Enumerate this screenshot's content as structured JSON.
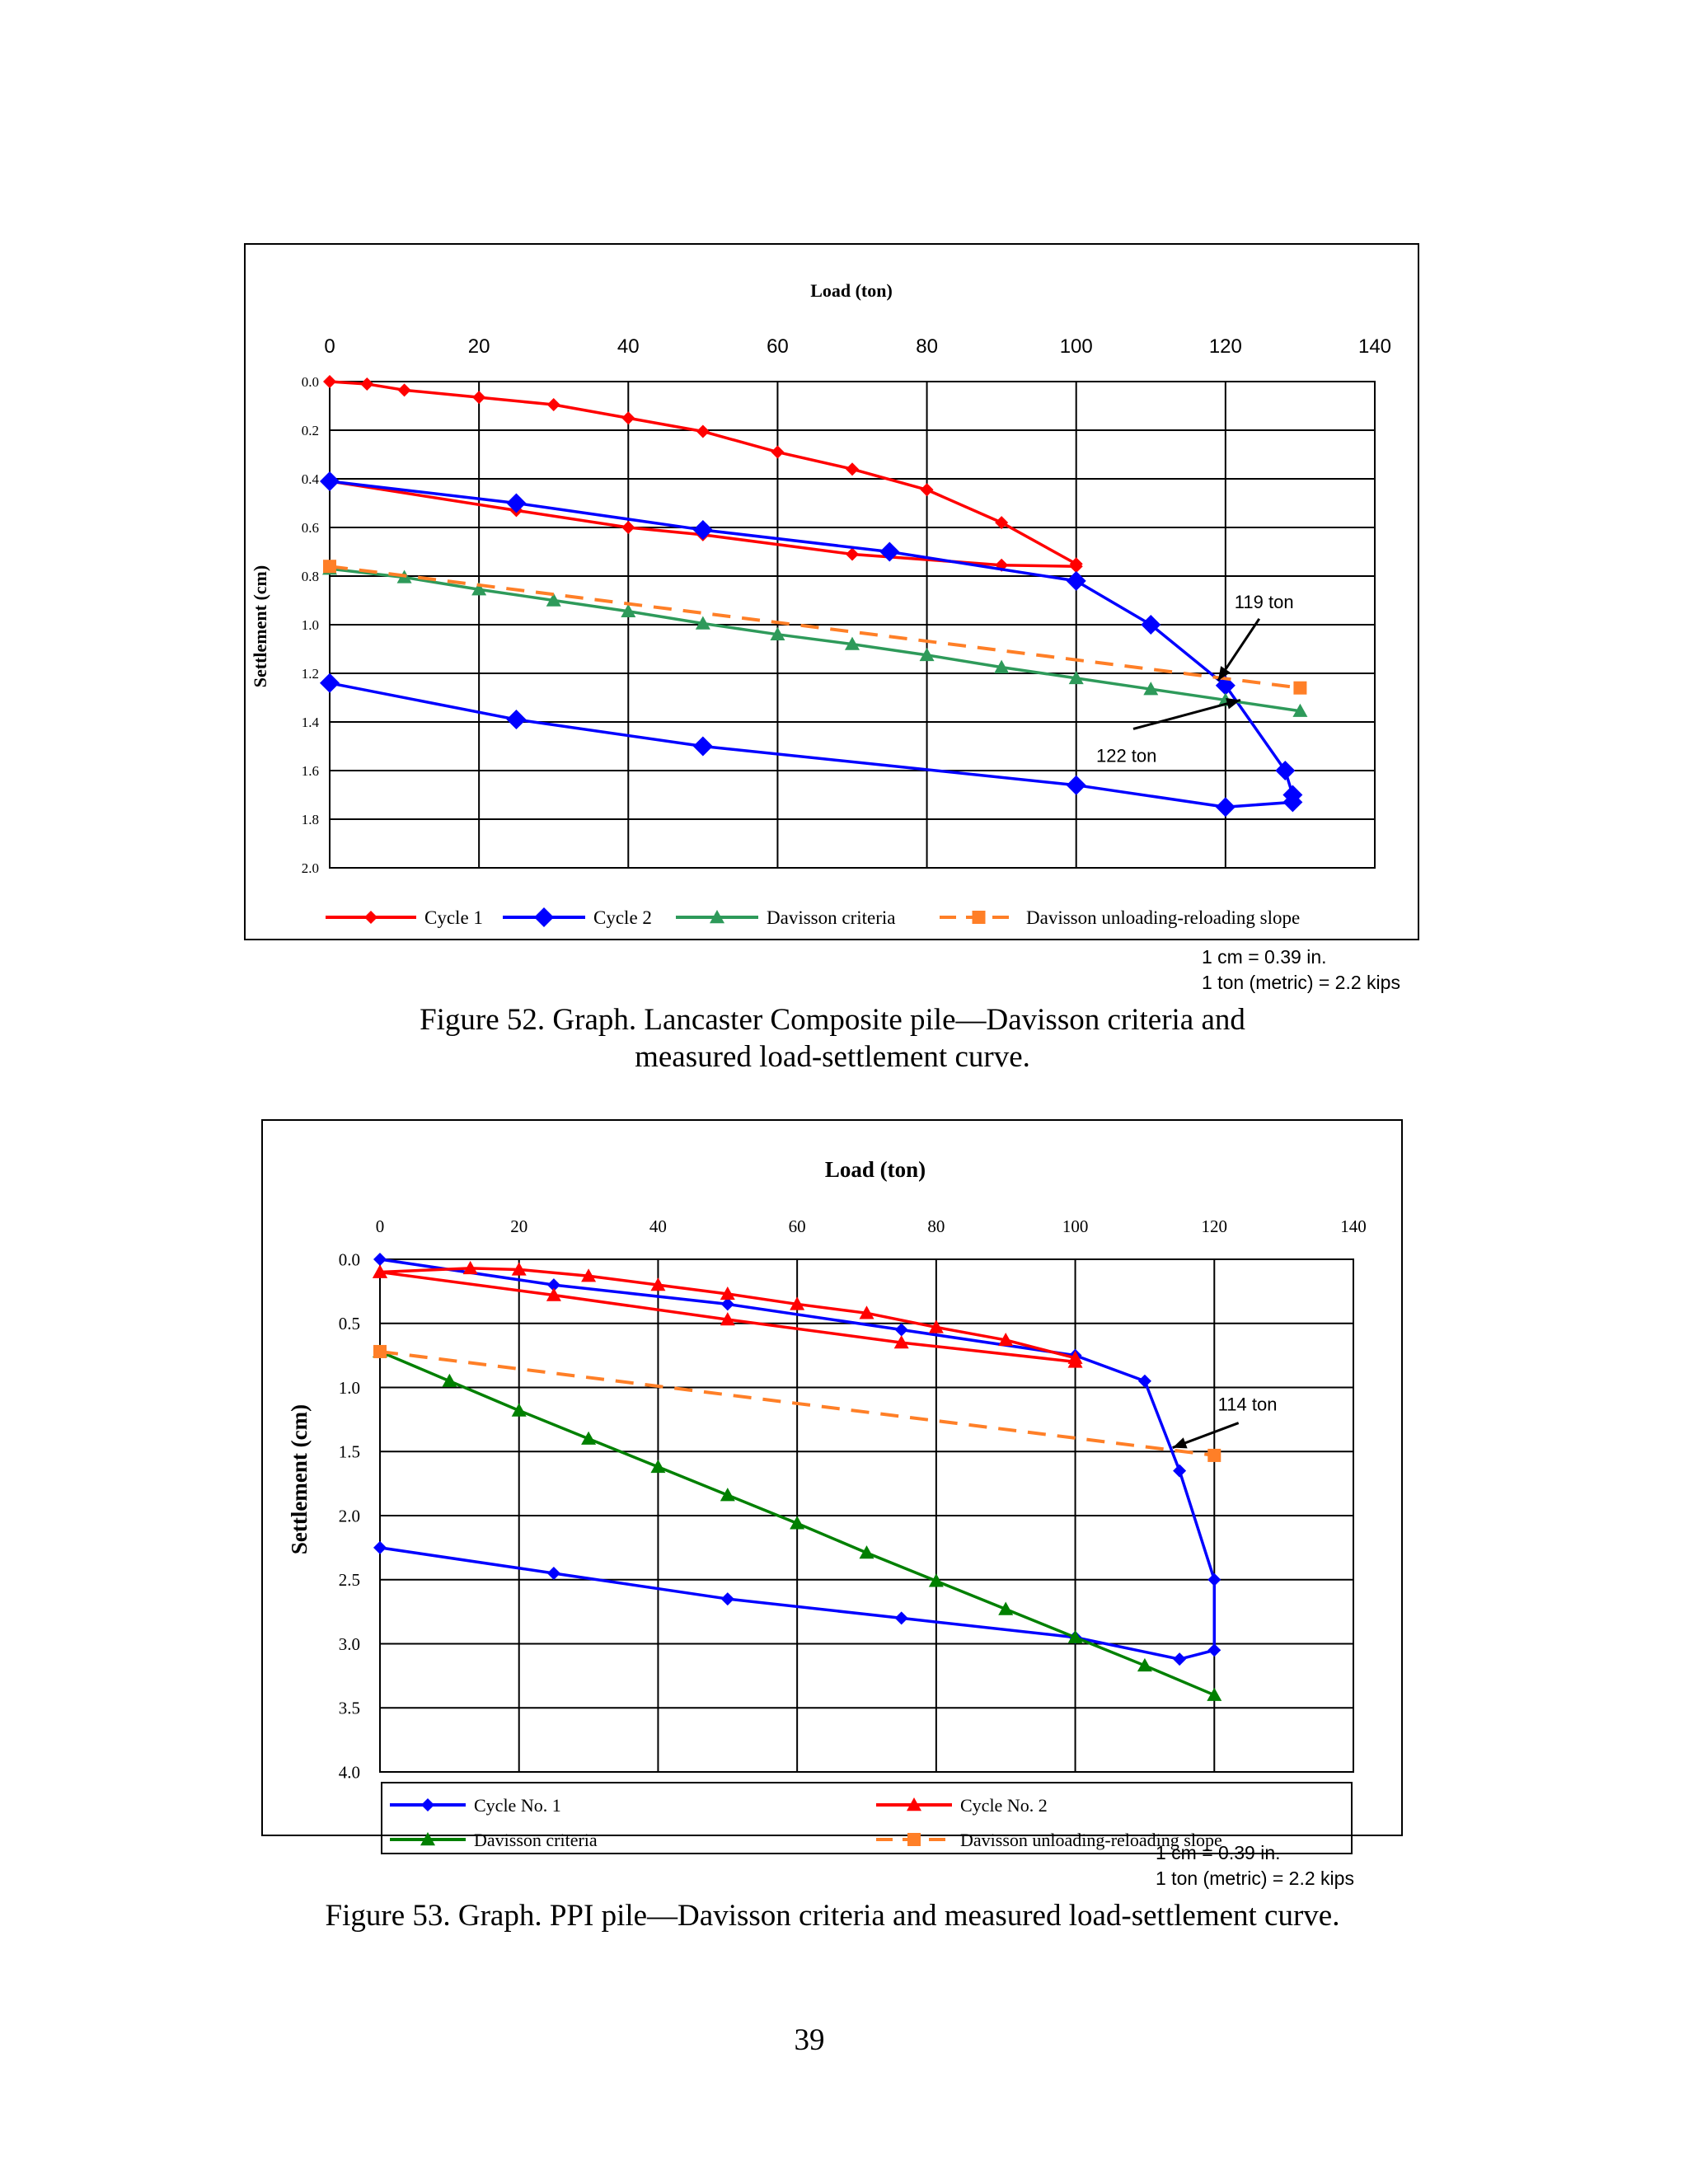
{
  "page_number": "39",
  "chart_data": [
    {
      "type": "line",
      "xlabel": "Load (ton)",
      "ylabel": "Settlement (cm)",
      "xlim": [
        0,
        140
      ],
      "ylim": [
        0,
        2.0
      ],
      "x_ticks": [
        "0",
        "20",
        "40",
        "60",
        "80",
        "100",
        "120",
        "140"
      ],
      "y_ticks": [
        "0.0",
        "0.2",
        "0.4",
        "0.6",
        "0.8",
        "1.0",
        "1.2",
        "1.4",
        "1.6",
        "1.8",
        "2.0"
      ],
      "x_axis_position": "top",
      "y_inverted": true,
      "grid": true,
      "legend_position": "bottom",
      "series": [
        {
          "name": "Cycle 1",
          "color": "#ff0000",
          "marker": "diamond-small",
          "dash": false,
          "points": [
            [
              0,
              0.0
            ],
            [
              5,
              0.01
            ],
            [
              10,
              0.035
            ],
            [
              20,
              0.065
            ],
            [
              30,
              0.095
            ],
            [
              40,
              0.15
            ],
            [
              50,
              0.205
            ],
            [
              60,
              0.29
            ],
            [
              70,
              0.36
            ],
            [
              80,
              0.445
            ],
            [
              90,
              0.58
            ],
            [
              100,
              0.75
            ],
            [
              100,
              0.76
            ],
            [
              90,
              0.755
            ],
            [
              70,
              0.71
            ],
            [
              50,
              0.63
            ],
            [
              40,
              0.6
            ],
            [
              25,
              0.53
            ],
            [
              0,
              0.41
            ]
          ]
        },
        {
          "name": "Cycle 2",
          "color": "#0000ff",
          "marker": "diamond-large",
          "dash": false,
          "points": [
            [
              0,
              0.41
            ],
            [
              25,
              0.5
            ],
            [
              50,
              0.61
            ],
            [
              75,
              0.7
            ],
            [
              100,
              0.82
            ],
            [
              110,
              1.0
            ],
            [
              120,
              1.25
            ],
            [
              128,
              1.6
            ],
            [
              129,
              1.7
            ],
            [
              129,
              1.73
            ],
            [
              120,
              1.75
            ],
            [
              100,
              1.66
            ],
            [
              50,
              1.5
            ],
            [
              25,
              1.39
            ],
            [
              0,
              1.24
            ]
          ]
        },
        {
          "name": "Davisson criteria",
          "color": "#2e9a5a",
          "marker": "triangle",
          "dash": false,
          "points": [
            [
              0,
              0.77
            ],
            [
              10,
              0.805
            ],
            [
              20,
              0.855
            ],
            [
              30,
              0.9
            ],
            [
              40,
              0.945
            ],
            [
              50,
              0.995
            ],
            [
              60,
              1.04
            ],
            [
              70,
              1.08
            ],
            [
              80,
              1.125
            ],
            [
              90,
              1.175
            ],
            [
              100,
              1.22
            ],
            [
              110,
              1.265
            ],
            [
              120,
              1.31
            ],
            [
              130,
              1.355
            ]
          ]
        },
        {
          "name": "Davisson unloading-reloading slope",
          "color": "#ff7f27",
          "marker": "square",
          "dash": true,
          "points": [
            [
              0,
              0.76
            ],
            [
              130,
              1.26
            ]
          ]
        }
      ],
      "annotations": [
        {
          "text": "119 ton",
          "point": [
            119,
            1.23
          ]
        },
        {
          "text": "122 ton",
          "point": [
            122,
            1.31
          ]
        }
      ]
    },
    {
      "type": "line",
      "xlabel": "Load (ton)",
      "ylabel": "Settlement (cm)",
      "xlim": [
        0,
        140
      ],
      "ylim": [
        0,
        4.0
      ],
      "x_ticks": [
        "0",
        "20",
        "40",
        "60",
        "80",
        "100",
        "120",
        "140"
      ],
      "y_ticks": [
        "0.0",
        "0.5",
        "1.0",
        "1.5",
        "2.0",
        "2.5",
        "3.0",
        "3.5",
        "4.0"
      ],
      "x_axis_position": "top",
      "y_inverted": true,
      "grid": true,
      "legend_position": "bottom",
      "series": [
        {
          "name": "Cycle No. 1",
          "color": "#0000ff",
          "marker": "diamond-small",
          "dash": false,
          "points": [
            [
              0,
              0.0
            ],
            [
              25,
              0.2
            ],
            [
              50,
              0.35
            ],
            [
              75,
              0.55
            ],
            [
              100,
              0.75
            ],
            [
              110,
              0.95
            ],
            [
              115,
              1.65
            ],
            [
              120,
              2.5
            ],
            [
              120,
              3.05
            ],
            [
              115,
              3.12
            ],
            [
              100,
              2.95
            ],
            [
              75,
              2.8
            ],
            [
              50,
              2.65
            ],
            [
              25,
              2.45
            ],
            [
              0,
              2.25
            ]
          ]
        },
        {
          "name": "Cycle No. 2",
          "color": "#ff0000",
          "marker": "triangle",
          "dash": false,
          "points": [
            [
              0,
              0.1
            ],
            [
              13,
              0.07
            ],
            [
              20,
              0.08
            ],
            [
              30,
              0.13
            ],
            [
              40,
              0.2
            ],
            [
              50,
              0.27
            ],
            [
              60,
              0.35
            ],
            [
              70,
              0.42
            ],
            [
              80,
              0.53
            ],
            [
              90,
              0.63
            ],
            [
              100,
              0.77
            ],
            [
              100,
              0.8
            ],
            [
              75,
              0.65
            ],
            [
              50,
              0.47
            ],
            [
              25,
              0.28
            ],
            [
              0,
              0.1
            ]
          ]
        },
        {
          "name": "Davisson criteria",
          "color": "#008000",
          "marker": "triangle",
          "dash": false,
          "points": [
            [
              0,
              0.72
            ],
            [
              10,
              0.95
            ],
            [
              20,
              1.18
            ],
            [
              30,
              1.4
            ],
            [
              40,
              1.62
            ],
            [
              50,
              1.84
            ],
            [
              60,
              2.06
            ],
            [
              70,
              2.29
            ],
            [
              80,
              2.51
            ],
            [
              90,
              2.73
            ],
            [
              100,
              2.95
            ],
            [
              110,
              3.17
            ],
            [
              120,
              3.4
            ]
          ]
        },
        {
          "name": "Davisson unloading-reloading slope",
          "color": "#ff7f27",
          "marker": "square",
          "dash": true,
          "points": [
            [
              0,
              0.72
            ],
            [
              120,
              1.53
            ]
          ]
        }
      ],
      "annotations": [
        {
          "text": "114 ton",
          "point": [
            114,
            1.47
          ]
        }
      ]
    }
  ],
  "conversions": [
    "1 cm = 0.39 in.",
    "1 ton (metric) = 2.2 kips"
  ],
  "captions": [
    {
      "line1": "Figure 52. Graph. Lancaster Composite pile—Davisson criteria and",
      "line2": "measured load-settlement curve."
    },
    {
      "line1": "Figure 53. Graph. PPI pile—Davisson criteria and measured load-settlement curve.",
      "line2": ""
    }
  ]
}
